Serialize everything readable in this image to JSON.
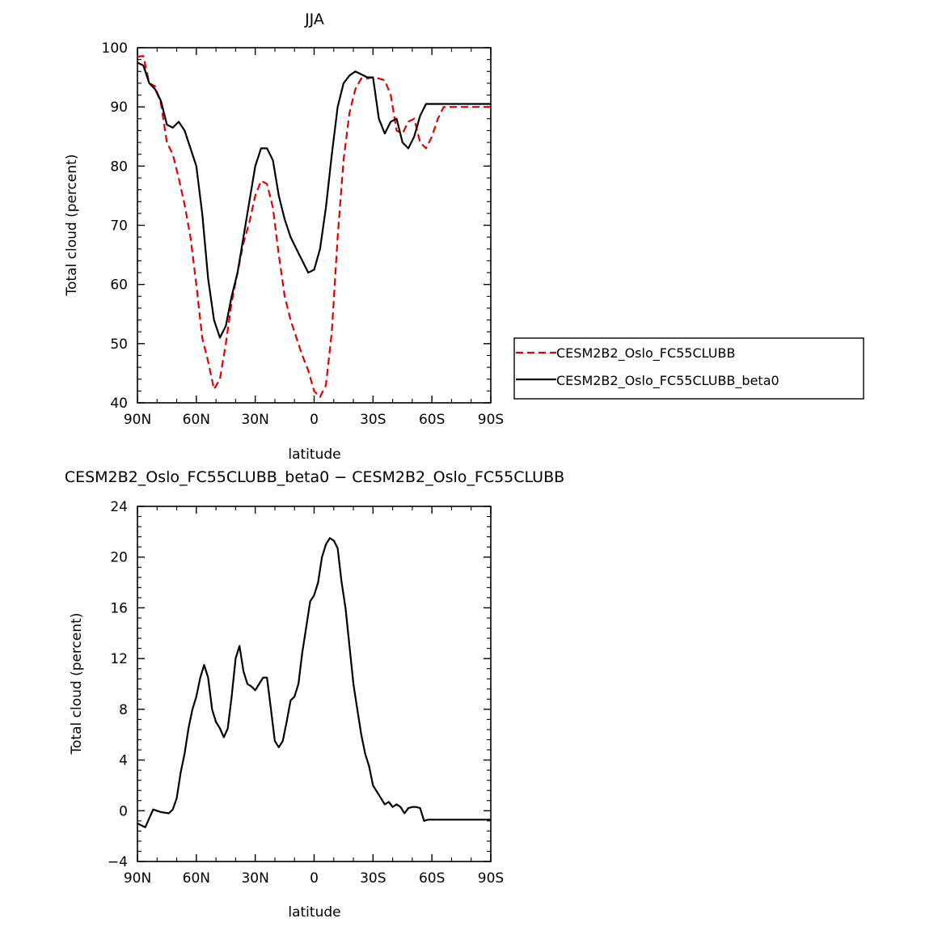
{
  "chart_data": [
    {
      "type": "line",
      "title": "JJA",
      "xlabel": "latitude",
      "ylabel": "Total cloud (percent)",
      "xlim": [
        -90,
        90
      ],
      "ylim": [
        40,
        100
      ],
      "x_ticks": [
        {
          "value": -90,
          "label": "90N"
        },
        {
          "value": -60,
          "label": "60N"
        },
        {
          "value": -30,
          "label": "30N"
        },
        {
          "value": 0,
          "label": "0"
        },
        {
          "value": 30,
          "label": "30S"
        },
        {
          "value": 60,
          "label": "60S"
        },
        {
          "value": 90,
          "label": "90S"
        }
      ],
      "y_ticks": [
        40,
        50,
        60,
        70,
        80,
        90,
        100
      ],
      "legend_position": "right",
      "series": [
        {
          "name": "CESM2B2_Oslo_FC55CLUBB",
          "color": "#e00000",
          "dash": "dashed",
          "x": [
            -90,
            -87,
            -84,
            -81,
            -78,
            -75,
            -72,
            -69,
            -66,
            -63,
            -60,
            -57,
            -54,
            -51,
            -48,
            -45,
            -42,
            -39,
            -36,
            -33,
            -30,
            -27,
            -24,
            -21,
            -18,
            -15,
            -12,
            -9,
            -6,
            -3,
            0,
            3,
            6,
            9,
            12,
            15,
            18,
            21,
            24,
            27,
            30,
            33,
            36,
            39,
            42,
            45,
            48,
            51,
            54,
            57,
            60,
            63,
            66,
            69,
            72,
            75,
            78,
            81,
            84,
            87,
            90
          ],
          "y": [
            98.5,
            98.6,
            94,
            93.5,
            90.5,
            84,
            82,
            78,
            73.5,
            68,
            60,
            51,
            47,
            42.3,
            44,
            50,
            57,
            62,
            67,
            70.5,
            75,
            77.5,
            77,
            73,
            65,
            58,
            54,
            51,
            48,
            45.5,
            42,
            41,
            43,
            52,
            68,
            81,
            89,
            93,
            94.8,
            94.8,
            95,
            94.8,
            94.5,
            92,
            86,
            85.5,
            87.5,
            88,
            84,
            83,
            85,
            88,
            90,
            90,
            90,
            90,
            90,
            90,
            90,
            90,
            90
          ]
        },
        {
          "name": "CESM2B2_Oslo_FC55CLUBB_beta0",
          "color": "#000000",
          "dash": "solid",
          "x": [
            -90,
            -87,
            -84,
            -81,
            -78,
            -75,
            -72,
            -69,
            -66,
            -63,
            -60,
            -57,
            -54,
            -51,
            -48,
            -45,
            -42,
            -39,
            -36,
            -33,
            -30,
            -27,
            -24,
            -21,
            -18,
            -15,
            -12,
            -9,
            -6,
            -3,
            0,
            3,
            6,
            9,
            12,
            15,
            18,
            21,
            24,
            27,
            30,
            33,
            36,
            39,
            42,
            45,
            48,
            51,
            54,
            57,
            60,
            63,
            66,
            69,
            72,
            75,
            78,
            81,
            84,
            87,
            90
          ],
          "y": [
            97.5,
            97,
            94,
            93,
            91,
            87,
            86.5,
            87.5,
            86,
            83,
            80,
            72,
            61,
            54,
            51,
            53,
            58,
            62,
            68,
            74,
            80,
            83,
            83,
            81,
            75,
            71,
            68,
            66,
            64,
            62,
            62.5,
            66,
            73,
            82,
            90,
            94,
            95.3,
            96,
            95.5,
            95,
            95,
            88,
            85.5,
            87.5,
            88,
            84,
            83,
            85,
            88.5,
            90.5,
            90.5,
            90.5,
            90.5,
            90.5,
            90.5,
            90.5,
            90.5,
            90.5,
            90.5,
            90.5,
            90.5
          ]
        }
      ]
    },
    {
      "type": "line",
      "title": "CESM2B2_Oslo_FC55CLUBB_beta0 − CESM2B2_Oslo_FC55CLUBB",
      "xlabel": "latitude",
      "ylabel": "Total cloud (percent)",
      "xlim": [
        -90,
        90
      ],
      "ylim": [
        -4,
        24
      ],
      "x_ticks": [
        {
          "value": -90,
          "label": "90N"
        },
        {
          "value": -60,
          "label": "60N"
        },
        {
          "value": -30,
          "label": "30N"
        },
        {
          "value": 0,
          "label": "0"
        },
        {
          "value": 30,
          "label": "30S"
        },
        {
          "value": 60,
          "label": "60S"
        },
        {
          "value": 90,
          "label": "90S"
        }
      ],
      "y_ticks": [
        -4,
        0,
        4,
        8,
        12,
        16,
        20,
        24
      ],
      "series": [
        {
          "color": "#000000",
          "dash": "solid",
          "x": [
            -90,
            -86,
            -82,
            -78,
            -74,
            -72,
            -70,
            -68,
            -66,
            -64,
            -62,
            -60,
            -58,
            -56,
            -54,
            -52,
            -50,
            -48,
            -46,
            -44,
            -42,
            -40,
            -38,
            -36,
            -34,
            -32,
            -30,
            -28,
            -26,
            -24,
            -22,
            -20,
            -18,
            -16,
            -14,
            -12,
            -10,
            -8,
            -6,
            -4,
            -2,
            0,
            2,
            4,
            6,
            8,
            10,
            12,
            14,
            16,
            18,
            20,
            22,
            24,
            26,
            28,
            30,
            32,
            34,
            36,
            38,
            40,
            42,
            44,
            46,
            48,
            50,
            52,
            54,
            56,
            58,
            60,
            62,
            64,
            66,
            68,
            70,
            72,
            74,
            76,
            78,
            80,
            82,
            84,
            86,
            88,
            90
          ],
          "y": [
            -1,
            -1.3,
            0.1,
            -0.1,
            -0.2,
            0.1,
            1,
            3,
            4.5,
            6.5,
            8,
            9,
            10.5,
            11.5,
            10.5,
            8,
            7,
            6.5,
            5.8,
            6.5,
            9,
            12,
            13,
            11,
            10,
            9.8,
            9.5,
            10,
            10.5,
            10.5,
            8,
            5.5,
            5,
            5.5,
            7,
            8.7,
            9,
            10,
            12.5,
            14.5,
            16.5,
            17,
            18,
            20,
            21,
            21.5,
            21.3,
            20.7,
            18,
            16,
            13,
            10,
            8,
            6,
            4.5,
            3.5,
            2,
            1.5,
            1,
            0.5,
            0.7,
            0.3,
            0.5,
            0.3,
            -0.2,
            0.2,
            0.3,
            0.3,
            0.2,
            -0.8,
            -0.7,
            -0.7,
            -0.7,
            -0.7,
            -0.7,
            -0.7,
            -0.7,
            -0.7,
            -0.7,
            -0.7,
            -0.7,
            -0.7,
            -0.7,
            -0.7,
            -0.7,
            -0.7,
            -0.7
          ]
        }
      ]
    }
  ]
}
